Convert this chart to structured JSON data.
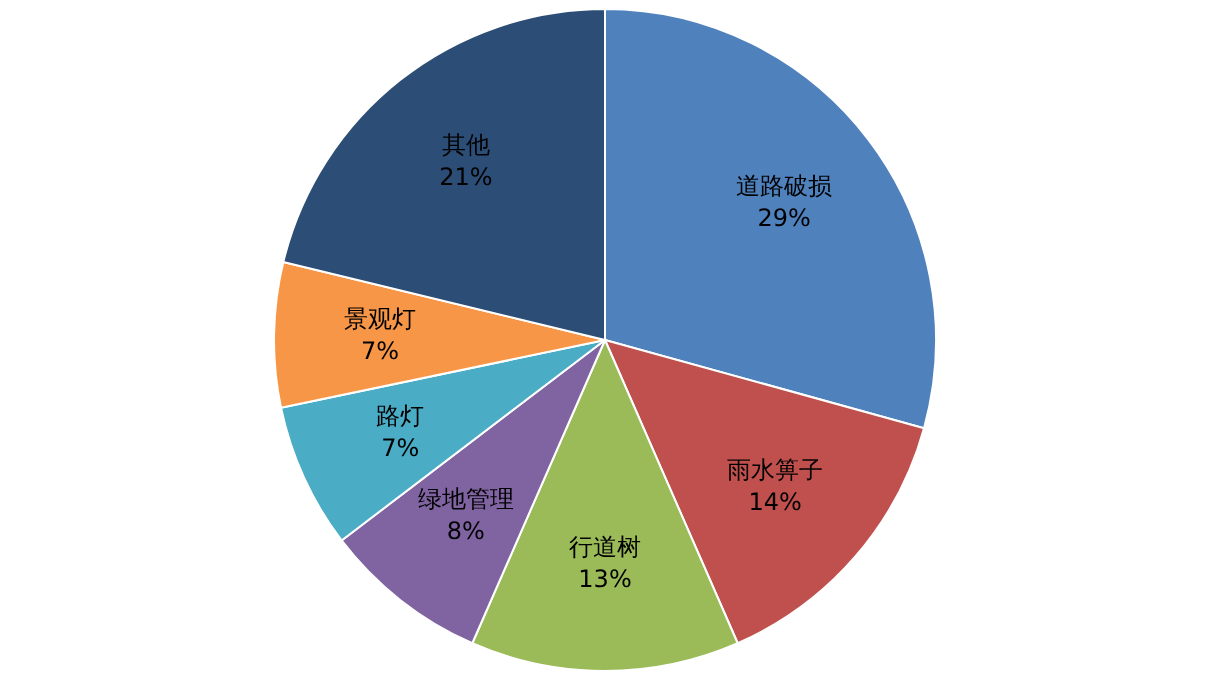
{
  "chart_data": {
    "type": "pie",
    "categories": [
      "道路破损",
      "雨水箅子",
      "行道树",
      "绿地管理",
      "路灯",
      "景观灯",
      "其他"
    ],
    "values": [
      29,
      14,
      13,
      8,
      7,
      7,
      21
    ],
    "value_labels": [
      "29%",
      "14%",
      "13%",
      "8%",
      "7%",
      "7%",
      "21%"
    ],
    "colors": [
      "#4f81bd",
      "#c0504d",
      "#9bbb59",
      "#8064a2",
      "#4bacc6",
      "#f79646",
      "#2c4d75"
    ],
    "legend": false
  }
}
